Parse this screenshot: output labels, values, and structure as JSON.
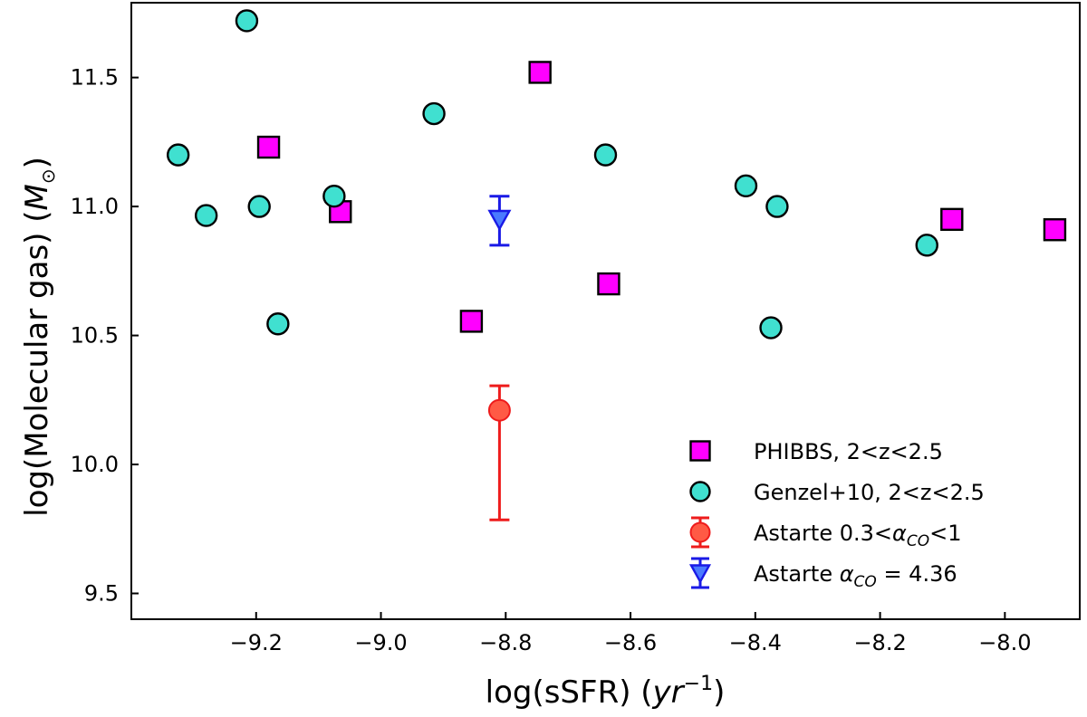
{
  "chart_data": {
    "type": "scatter",
    "title": "",
    "xlabel": "log(sSFR)  (yr⁻¹)",
    "ylabel": "log(Molecular gas)  (M☉)",
    "xlabel_main": "log(sSFR)",
    "xlabel_unit": "yr",
    "xlabel_exp": "−1",
    "ylabel_main": "log(Molecular gas)",
    "ylabel_unit": "M",
    "ylabel_sub": "⊙",
    "xlim": [
      -9.4,
      -7.88
    ],
    "ylim": [
      9.4,
      11.79
    ],
    "xticks": [
      -9.2,
      -9.0,
      -8.8,
      -8.6,
      -8.4,
      -8.2,
      -8.0
    ],
    "xtick_labels": [
      "−9.2",
      "−9.0",
      "−8.8",
      "−8.6",
      "−8.4",
      "−8.2",
      "−8.0"
    ],
    "yticks": [
      9.5,
      10.0,
      10.5,
      11.0,
      11.5
    ],
    "ytick_labels": [
      "9.5",
      "10.0",
      "10.5",
      "11.0",
      "11.5"
    ],
    "grid": false,
    "legend_position": "lower-right",
    "series": [
      {
        "name": "PHIBBS, 2<z<2.5",
        "marker": "square",
        "color": "#ff00ff",
        "points": [
          {
            "x": -9.18,
            "y": 11.23
          },
          {
            "x": -9.065,
            "y": 10.98
          },
          {
            "x": -8.745,
            "y": 11.52
          },
          {
            "x": -8.855,
            "y": 10.555
          },
          {
            "x": -8.635,
            "y": 10.7
          },
          {
            "x": -8.085,
            "y": 10.95
          },
          {
            "x": -7.92,
            "y": 10.91
          }
        ]
      },
      {
        "name": "Genzel+10, 2<z<2.5",
        "marker": "circle",
        "color": "#40e0d0",
        "points": [
          {
            "x": -9.325,
            "y": 11.2
          },
          {
            "x": -9.28,
            "y": 10.965
          },
          {
            "x": -9.215,
            "y": 11.72
          },
          {
            "x": -9.195,
            "y": 11.0
          },
          {
            "x": -9.165,
            "y": 10.545
          },
          {
            "x": -9.075,
            "y": 11.04
          },
          {
            "x": -8.915,
            "y": 11.36
          },
          {
            "x": -8.64,
            "y": 11.2
          },
          {
            "x": -8.415,
            "y": 11.08
          },
          {
            "x": -8.375,
            "y": 10.53
          },
          {
            "x": -8.365,
            "y": 11.0
          },
          {
            "x": -8.125,
            "y": 10.85
          }
        ]
      },
      {
        "name": "Astarte 0.3<αCO<1",
        "label_prefix": "Astarte 0.3<",
        "label_symbol": "α",
        "label_sub": "CO",
        "label_suffix": "<1",
        "marker": "circle-errorbar",
        "color": "#ff5a45",
        "errcolor": "#ee1c1c",
        "points": [
          {
            "x": -8.81,
            "y": 10.21,
            "ylow": 9.785,
            "yhigh": 10.305
          }
        ]
      },
      {
        "name": "Astarte αCO = 4.36",
        "label_prefix": "Astarte ",
        "label_symbol": "α",
        "label_sub": "CO",
        "label_suffix": " = 4.36",
        "marker": "triangle-down-errorbar",
        "color": "#4a7aff",
        "errcolor": "#1a1ae6",
        "points": [
          {
            "x": -8.81,
            "y": 10.95,
            "ylow": 10.85,
            "yhigh": 11.04
          }
        ]
      }
    ]
  }
}
